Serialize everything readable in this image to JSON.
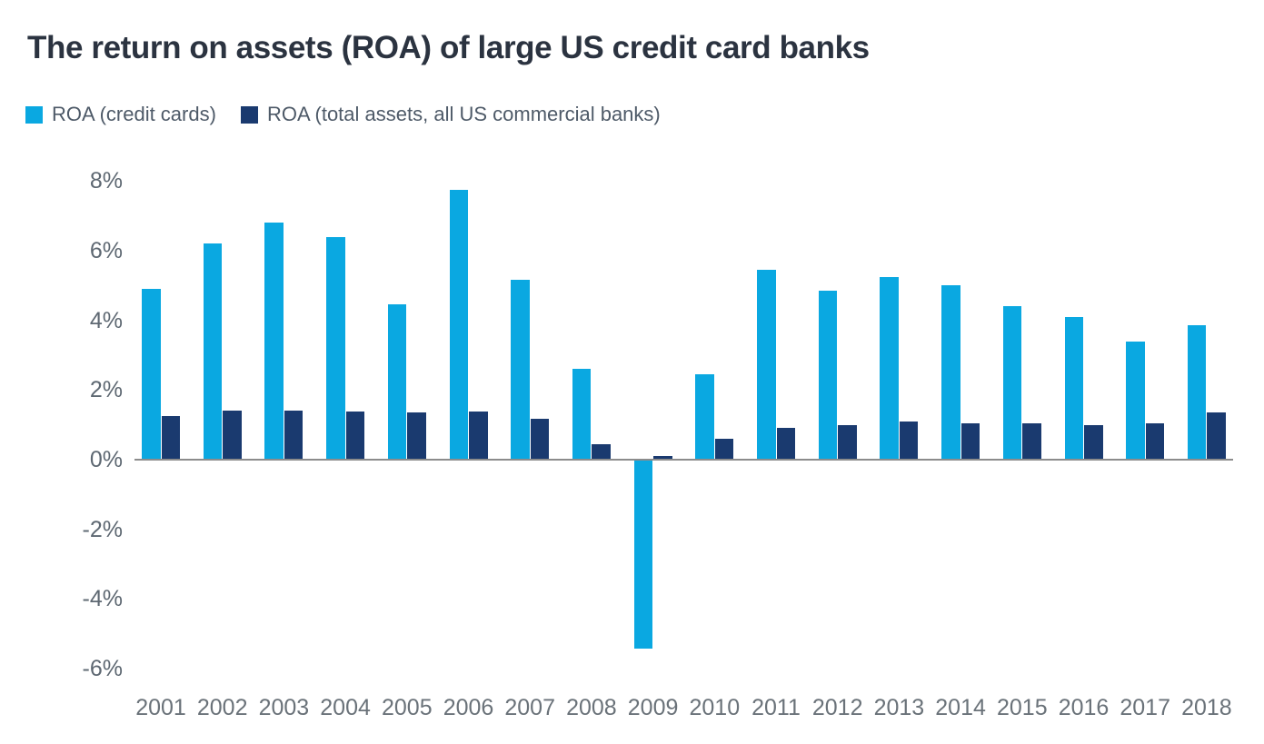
{
  "chart_data": {
    "type": "bar",
    "title": "The return on assets (ROA) of large US credit card banks",
    "xlabel": "",
    "ylabel": "",
    "unit": "%",
    "ylim": [
      -6,
      8
    ],
    "grid": false,
    "legend_position": "top-left",
    "baseline_color": "#8C8C8C",
    "categories": [
      "2001",
      "2002",
      "2003",
      "2004",
      "2005",
      "2006",
      "2007",
      "2008",
      "2009",
      "2010",
      "2011",
      "2012",
      "2013",
      "2014",
      "2015",
      "2016",
      "2017",
      "2018"
    ],
    "series": [
      {
        "name": "ROA (credit cards)",
        "color": "#0AA8E1",
        "values": [
          4.9,
          6.2,
          6.8,
          6.4,
          4.45,
          7.75,
          5.15,
          2.6,
          -5.4,
          2.45,
          5.45,
          4.85,
          5.25,
          5.0,
          4.4,
          4.1,
          3.4,
          3.85
        ]
      },
      {
        "name": "ROA (total assets, all US commercial banks)",
        "color": "#1A3A6F",
        "values": [
          1.25,
          1.4,
          1.4,
          1.38,
          1.35,
          1.38,
          1.17,
          0.45,
          0.1,
          0.6,
          0.9,
          1.0,
          1.1,
          1.03,
          1.03,
          1.0,
          1.03,
          1.35
        ]
      }
    ],
    "yticks": [
      {
        "value": 8,
        "label": "8%"
      },
      {
        "value": 6,
        "label": "6%"
      },
      {
        "value": 4,
        "label": "4%"
      },
      {
        "value": 2,
        "label": "2%"
      },
      {
        "value": 0,
        "label": "0%"
      },
      {
        "value": -2,
        "label": "-2%"
      },
      {
        "value": -4,
        "label": "-4%"
      },
      {
        "value": -6,
        "label": "-6%"
      }
    ]
  }
}
